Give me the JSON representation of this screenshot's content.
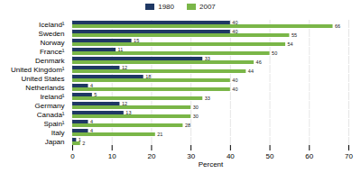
{
  "chart_data": {
    "type": "bar",
    "orientation": "horizontal",
    "categories": [
      "Iceland¹",
      "Sweden",
      "Norway",
      "France¹",
      "Denmark",
      "United Kingdom¹",
      "United States",
      "Netherlands",
      "Ireland¹",
      "Germany",
      "Canada¹",
      "Spain¹",
      "Italy",
      "Japan"
    ],
    "series": [
      {
        "name": "1980",
        "color": "#1f3864",
        "values": [
          40,
          40,
          15,
          11,
          33,
          12,
          18,
          4,
          5,
          12,
          13,
          4,
          4,
          1
        ]
      },
      {
        "name": "2007",
        "color": "#7ab648",
        "values": [
          66,
          55,
          54,
          50,
          46,
          44,
          40,
          40,
          33,
          30,
          30,
          28,
          21,
          2
        ]
      }
    ],
    "xlabel": "Percent",
    "xlim": [
      0,
      70
    ],
    "xticks": [
      0,
      10,
      20,
      30,
      40,
      50,
      60,
      70
    ],
    "grid": true,
    "legend": "top",
    "data_labels": true
  }
}
